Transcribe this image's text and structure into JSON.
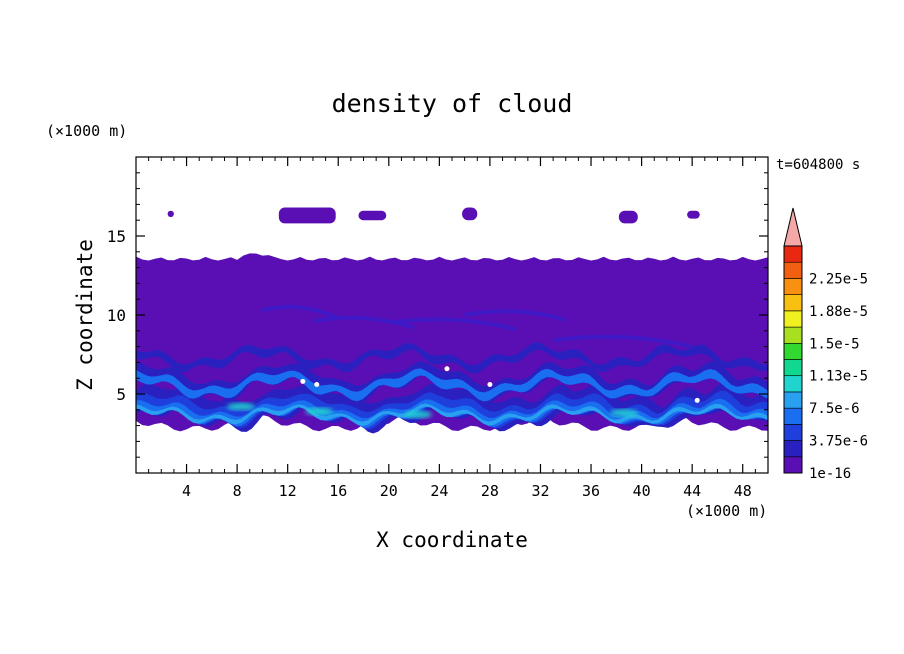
{
  "chart_data": {
    "type": "heatmap",
    "title": "density of cloud",
    "xlabel": "X coordinate",
    "ylabel": "Z coordinate",
    "x_unit": "(×1000 m)",
    "y_unit": "(×1000 m)",
    "time_label": "t=604800 s",
    "xlim": [
      0,
      50
    ],
    "ylim": [
      0,
      20
    ],
    "x_ticks": [
      4,
      8,
      12,
      16,
      20,
      24,
      28,
      32,
      36,
      40,
      44,
      48
    ],
    "y_ticks": [
      5,
      10,
      15
    ],
    "colorbar": {
      "levels": [
        "1e-16",
        "3.75e-6",
        "7.5e-6",
        "1.13e-5",
        "1.5e-5",
        "1.88e-5",
        "2.25e-5"
      ],
      "colors": [
        "#5a0fb4",
        "#2a20c0",
        "#1e3fdc",
        "#1a6ef0",
        "#2aa0f0",
        "#20d4d0",
        "#10d890",
        "#30d830",
        "#a8e020",
        "#f0f020",
        "#f8c010",
        "#f89010",
        "#f06010",
        "#e82810",
        "#f4a8a8"
      ],
      "extend": "max"
    },
    "upper_cloud_patches": [
      {
        "x": [
          2.5,
          3.0
        ],
        "z": [
          16.2,
          16.6
        ]
      },
      {
        "x": [
          11.3,
          15.8
        ],
        "z": [
          15.8,
          16.8
        ]
      },
      {
        "x": [
          17.6,
          19.8
        ],
        "z": [
          16.0,
          16.6
        ]
      },
      {
        "x": [
          25.8,
          27.0
        ],
        "z": [
          16.0,
          16.8
        ]
      },
      {
        "x": [
          38.2,
          39.7
        ],
        "z": [
          15.8,
          16.6
        ]
      },
      {
        "x": [
          43.6,
          44.6
        ],
        "z": [
          16.1,
          16.6
        ]
      }
    ],
    "main_cloud_layer": {
      "z_bottom": 2.5,
      "z_top": 13.7
    },
    "high_density_band": {
      "z": [
        3,
        6
      ],
      "max_level": "1.13e-5"
    }
  }
}
